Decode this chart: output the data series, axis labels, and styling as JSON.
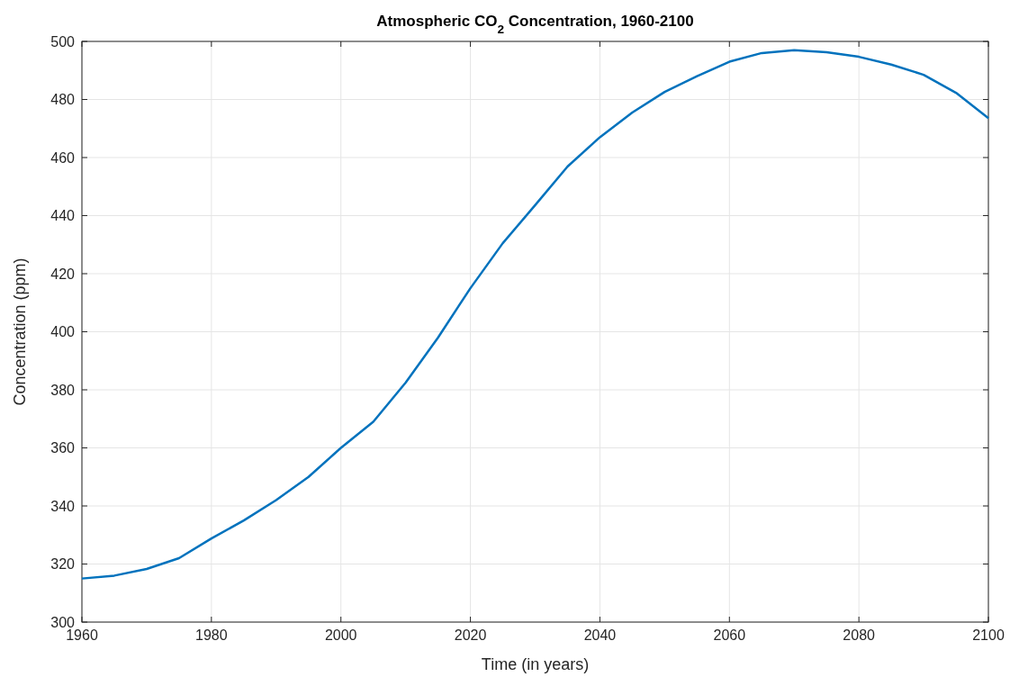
{
  "chart_data": {
    "type": "line",
    "title": "Atmospheric CO$_{2}$ Concentration, 1960-2100",
    "xlabel": "Time (in years)",
    "ylabel": "Concentration (ppm)",
    "x": [
      1960,
      1965,
      1970,
      1975,
      1980,
      1985,
      1990,
      1995,
      2000,
      2005,
      2010,
      2015,
      2020,
      2025,
      2030,
      2035,
      2040,
      2045,
      2050,
      2055,
      2060,
      2065,
      2070,
      2075,
      2080,
      2085,
      2090,
      2095,
      2100
    ],
    "series": [
      {
        "color": "#0072bd",
        "values": [
          315,
          316,
          318.3,
          322,
          328.8,
          335,
          342,
          350,
          360,
          369,
          382.5,
          398,
          415,
          430.5,
          443.6,
          456.9,
          467,
          475.5,
          482.6,
          488,
          493,
          496,
          497,
          496.3,
          494.7,
          492,
          488.5,
          482.3,
          473.6
        ]
      }
    ],
    "xlim": [
      1960,
      2100
    ],
    "ylim": [
      300,
      500
    ],
    "xticks": [
      1960,
      1980,
      2000,
      2020,
      2040,
      2060,
      2080,
      2100
    ],
    "yticks": [
      300,
      320,
      340,
      360,
      380,
      400,
      420,
      440,
      460,
      480,
      500
    ],
    "grid": true,
    "marker": "none",
    "line_style": "solid"
  }
}
